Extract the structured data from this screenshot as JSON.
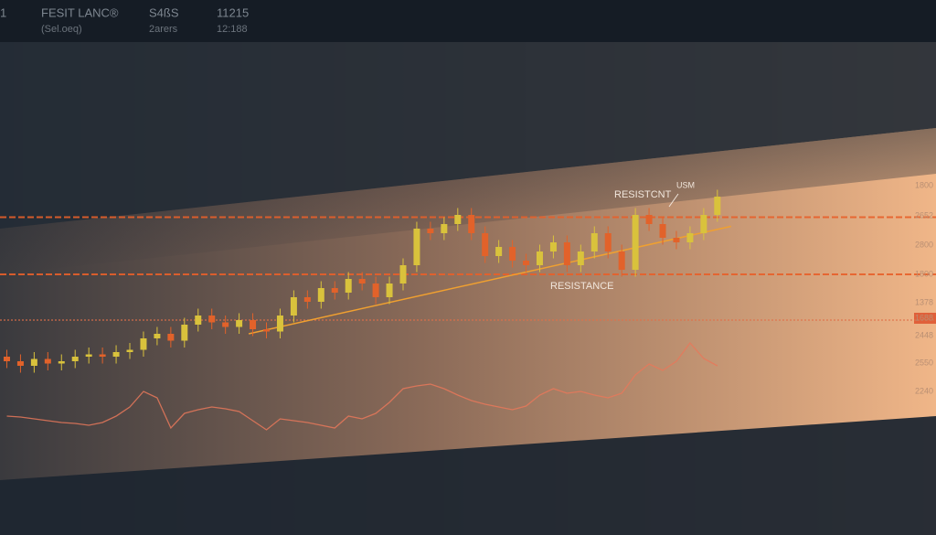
{
  "header": {
    "left_mark": "1",
    "title": "FESIT LANC®",
    "subtitle": "(Sel.oeq)",
    "field_1": "S4ßS",
    "field_1_sub": "2arers",
    "field_2": "11215",
    "field_2_sub": "12:188"
  },
  "chart_data": {
    "type": "candlestick",
    "annotations": {
      "upper": "RESISTCNT",
      "tag": "USM",
      "lower": "RESISTANCE"
    },
    "price_labels": [
      "1800",
      "2652",
      "2800",
      "1800",
      "1378",
      "1688",
      "2448",
      "2550",
      "2240"
    ],
    "xlim": [
      -0.5,
      68
    ],
    "ylim": [
      0,
      100
    ],
    "up_color": "#d9c23c",
    "down_color": "#e2622a",
    "open": [
      12,
      10,
      8,
      11,
      9,
      10,
      12,
      13,
      12,
      14,
      15,
      20,
      22,
      19,
      26,
      30,
      27,
      25,
      28,
      24,
      23,
      30,
      38,
      36,
      42,
      40,
      46,
      44,
      38,
      44,
      52,
      68,
      66,
      70,
      74,
      66,
      56,
      60,
      54,
      52,
      58,
      62,
      52,
      58,
      66,
      58,
      50,
      74,
      70,
      64,
      62,
      66,
      74
    ],
    "close": [
      10,
      8,
      11,
      9,
      10,
      12,
      13,
      12,
      14,
      15,
      20,
      22,
      19,
      26,
      30,
      27,
      25,
      28,
      24,
      23,
      30,
      38,
      36,
      42,
      40,
      46,
      44,
      38,
      44,
      52,
      68,
      66,
      70,
      74,
      66,
      56,
      60,
      54,
      52,
      58,
      62,
      52,
      58,
      66,
      58,
      50,
      74,
      70,
      64,
      62,
      66,
      74,
      82
    ],
    "high": [
      15,
      13,
      14,
      14,
      13,
      15,
      16,
      16,
      17,
      18,
      23,
      25,
      25,
      29,
      33,
      33,
      30,
      31,
      31,
      27,
      33,
      41,
      41,
      45,
      45,
      49,
      49,
      47,
      47,
      55,
      71,
      71,
      73,
      77,
      77,
      69,
      63,
      63,
      57,
      61,
      65,
      65,
      61,
      69,
      69,
      61,
      77,
      77,
      73,
      67,
      69,
      77,
      85
    ],
    "low": [
      7,
      5,
      5,
      6,
      6,
      7,
      9,
      9,
      9,
      11,
      12,
      17,
      16,
      16,
      23,
      24,
      22,
      22,
      21,
      20,
      20,
      27,
      33,
      33,
      37,
      37,
      41,
      35,
      35,
      41,
      49,
      63,
      63,
      67,
      63,
      53,
      53,
      51,
      49,
      49,
      55,
      49,
      49,
      55,
      55,
      47,
      47,
      67,
      61,
      59,
      59,
      63,
      71
    ],
    "levels": [
      {
        "value": 73,
        "color": "#e8602a",
        "style": "dashed"
      },
      {
        "value": 48,
        "color": "#e8602a",
        "style": "dashed"
      },
      {
        "value": 28,
        "color": "#e0704a",
        "style": "dotted"
      }
    ],
    "trendline": {
      "x": [
        17.7,
        53
      ],
      "y": [
        22,
        69
      ],
      "color": "#f0a030"
    },
    "oscillator": {
      "ylim": [
        0,
        120
      ],
      "color": "#e8785a",
      "values": [
        25,
        24,
        22,
        20,
        18,
        17,
        15,
        18,
        25,
        35,
        52,
        45,
        12,
        28,
        32,
        35,
        33,
        30,
        20,
        10,
        22,
        20,
        18,
        15,
        12,
        25,
        22,
        28,
        40,
        55,
        58,
        60,
        55,
        48,
        42,
        38,
        35,
        32,
        36,
        48,
        55,
        50,
        52,
        48,
        45,
        50,
        70,
        82,
        75,
        85,
        105,
        88,
        80
      ]
    }
  }
}
